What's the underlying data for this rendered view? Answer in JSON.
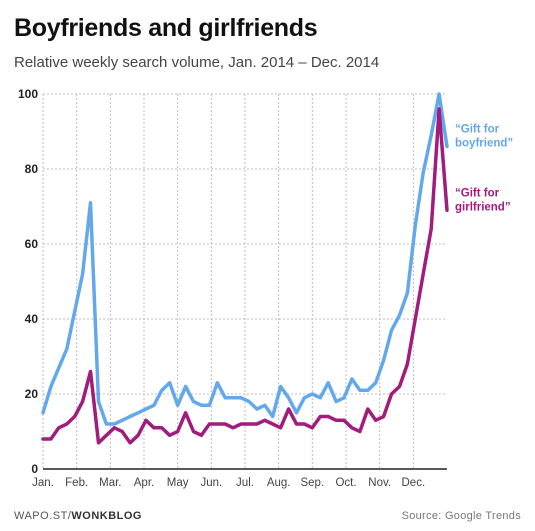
{
  "title": "Boyfriends and girlfriends",
  "subtitle": "Relative weekly search volume, Jan. 2014 – Dec. 2014",
  "credit": {
    "prefix": "WAPO.ST/",
    "brand": "WONKBLOG"
  },
  "source": "Source: Google Trends",
  "chart_data": {
    "type": "line",
    "ylim": [
      0,
      100
    ],
    "yticks": [
      "0",
      "20",
      "40",
      "60",
      "80",
      "100"
    ],
    "month_labels": [
      "Jan.",
      "Feb.",
      "Mar.",
      "Apr.",
      "May",
      "Jun.",
      "Jul.",
      "Aug.",
      "Sep.",
      "Oct.",
      "Nov.",
      "Dec."
    ],
    "grid": true,
    "legend_placement": "right, inline labels",
    "series": [
      {
        "name": "“Gift for boyfriend”",
        "color": "#64a8ec",
        "values": [
          15,
          22,
          27,
          32,
          42,
          52,
          71,
          18,
          12,
          12,
          13,
          14,
          15,
          16,
          17,
          21,
          23,
          17,
          22,
          18,
          17,
          17,
          23,
          19,
          19,
          19,
          18,
          16,
          17,
          14,
          22,
          19,
          15,
          19,
          20,
          19,
          23,
          18,
          19,
          24,
          21,
          21,
          23,
          29,
          37,
          41,
          47,
          65,
          79,
          89,
          100,
          86
        ]
      },
      {
        "name": "“Gift for girlfriend”",
        "color": "#a01c7d",
        "values": [
          8,
          8,
          11,
          12,
          14,
          18,
          26,
          7,
          9,
          11,
          10,
          7,
          9,
          13,
          11,
          11,
          9,
          10,
          15,
          10,
          9,
          12,
          12,
          12,
          11,
          12,
          12,
          12,
          13,
          12,
          11,
          16,
          12,
          12,
          11,
          14,
          14,
          13,
          13,
          11,
          10,
          16,
          13,
          14,
          20,
          22,
          28,
          40,
          52,
          64,
          96,
          69
        ]
      }
    ]
  }
}
